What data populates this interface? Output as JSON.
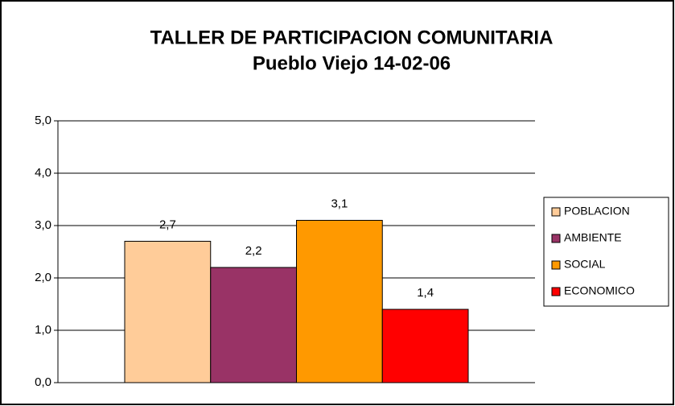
{
  "chart_data": {
    "type": "bar",
    "title": "TALLER DE PARTICIPACION COMUNITARIA",
    "subtitle": "Pueblo Viejo 14-02-06",
    "series": [
      {
        "name": "POBLACION",
        "color": "#ffcc99",
        "values": [
          2.7
        ],
        "value_labels": [
          "2,7"
        ]
      },
      {
        "name": "AMBIENTE",
        "color": "#993366",
        "values": [
          2.2
        ],
        "value_labels": [
          "2,2"
        ]
      },
      {
        "name": "SOCIAL",
        "color": "#ff9900",
        "values": [
          3.1
        ],
        "value_labels": [
          "3,1"
        ]
      },
      {
        "name": "ECONOMICO",
        "color": "#ff0000",
        "values": [
          1.4
        ],
        "value_labels": [
          "1,4"
        ]
      }
    ],
    "ylim": [
      0,
      5
    ],
    "yticks": [
      {
        "value": 0,
        "label": "0,0"
      },
      {
        "value": 1,
        "label": "1,0"
      },
      {
        "value": 2,
        "label": "2,0"
      },
      {
        "value": 3,
        "label": "3,0"
      },
      {
        "value": 4,
        "label": "4,0"
      },
      {
        "value": 5,
        "label": "5,0"
      }
    ],
    "grid": true,
    "legend": "right"
  }
}
